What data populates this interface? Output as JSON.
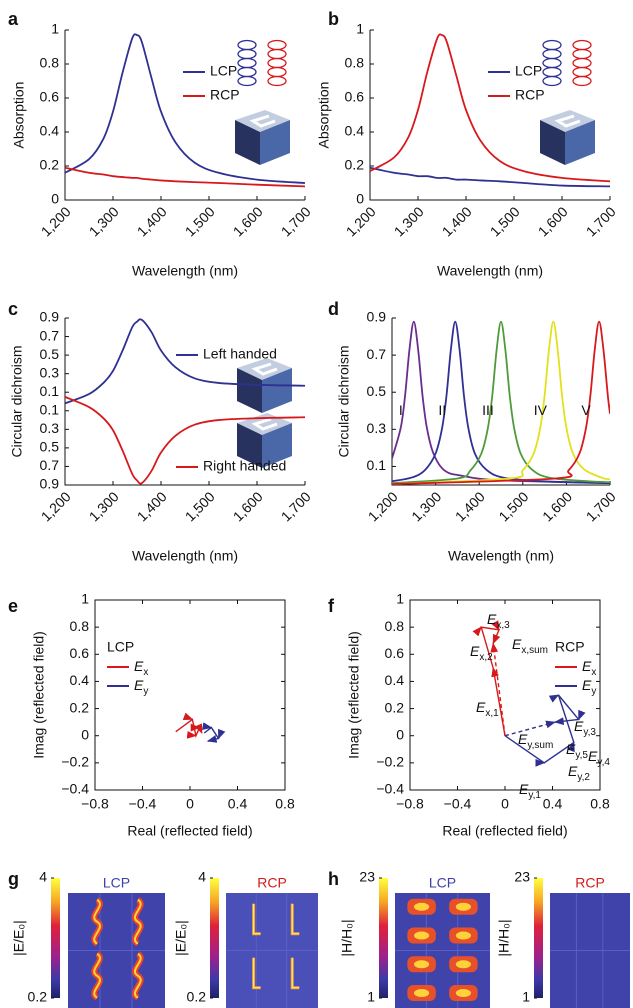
{
  "chart_data": [
    {
      "type": "line",
      "label": "a",
      "xlabel": "Wavelength (nm)",
      "ylabel": "Absorption",
      "x": [
        1200,
        1250,
        1280,
        1300,
        1320,
        1340,
        1350,
        1360,
        1380,
        1400,
        1430,
        1470,
        1520,
        1600,
        1700
      ],
      "xlim": [
        1200,
        1700
      ],
      "xticks": [
        {
          "value": 1200,
          "label": "1,200"
        },
        {
          "value": 1300,
          "label": "1,300"
        },
        {
          "value": 1400,
          "label": "1,400"
        },
        {
          "value": 1500,
          "label": "1,500"
        },
        {
          "value": 1600,
          "label": "1,600"
        },
        {
          "value": 1700,
          "label": "1,700"
        }
      ],
      "ylim": [
        0,
        1
      ],
      "yticks": [
        0,
        0.2,
        0.4,
        0.6,
        0.8,
        1
      ],
      "series": [
        {
          "name": "LCP",
          "color": "#2e3192",
          "values": [
            0.16,
            0.24,
            0.36,
            0.52,
            0.75,
            0.95,
            0.97,
            0.93,
            0.72,
            0.52,
            0.34,
            0.22,
            0.16,
            0.12,
            0.1
          ]
        },
        {
          "name": "RCP",
          "color": "#d7191c",
          "values": [
            0.19,
            0.16,
            0.15,
            0.14,
            0.135,
            0.13,
            0.13,
            0.125,
            0.12,
            0.115,
            0.11,
            0.105,
            0.1,
            0.09,
            0.08
          ]
        }
      ]
    },
    {
      "type": "line",
      "label": "b",
      "xlabel": "Wavelength (nm)",
      "ylabel": "Absorption",
      "x": [
        1200,
        1250,
        1280,
        1300,
        1320,
        1340,
        1350,
        1360,
        1380,
        1400,
        1430,
        1470,
        1520,
        1600,
        1700
      ],
      "xlim": [
        1200,
        1700
      ],
      "xticks": [
        {
          "value": 1200,
          "label": "1,200"
        },
        {
          "value": 1300,
          "label": "1,300"
        },
        {
          "value": 1400,
          "label": "1,400"
        },
        {
          "value": 1500,
          "label": "1,500"
        },
        {
          "value": 1600,
          "label": "1,600"
        },
        {
          "value": 1700,
          "label": "1,700"
        }
      ],
      "ylim": [
        0,
        1
      ],
      "yticks": [
        0,
        0.2,
        0.4,
        0.6,
        0.8,
        1
      ],
      "series": [
        {
          "name": "LCP",
          "color": "#2e3192",
          "values": [
            0.19,
            0.16,
            0.15,
            0.14,
            0.14,
            0.13,
            0.13,
            0.13,
            0.12,
            0.12,
            0.115,
            0.11,
            0.1,
            0.085,
            0.08
          ]
        },
        {
          "name": "RCP",
          "color": "#d7191c",
          "values": [
            0.17,
            0.25,
            0.37,
            0.53,
            0.76,
            0.95,
            0.97,
            0.93,
            0.73,
            0.53,
            0.35,
            0.23,
            0.17,
            0.13,
            0.11
          ]
        }
      ]
    },
    {
      "type": "line",
      "label": "c",
      "xlabel": "Wavelength (nm)",
      "ylabel": "Circular dichroism",
      "x": [
        1200,
        1250,
        1280,
        1300,
        1320,
        1340,
        1350,
        1360,
        1380,
        1400,
        1430,
        1470,
        1520,
        1600,
        1700
      ],
      "xlim": [
        1200,
        1700
      ],
      "xticks": [
        {
          "value": 1200,
          "label": "1,200"
        },
        {
          "value": 1300,
          "label": "1,300"
        },
        {
          "value": 1400,
          "label": "1,400"
        },
        {
          "value": 1500,
          "label": "1,500"
        },
        {
          "value": 1600,
          "label": "1,600"
        },
        {
          "value": 1700,
          "label": "1,700"
        }
      ],
      "ylim": [
        -0.9,
        0.9
      ],
      "yticks": [
        0.9,
        0.7,
        0.5,
        0.3,
        0.1,
        {
          "value": -0.1,
          "label": "0.1"
        },
        {
          "value": -0.3,
          "label": "0.3"
        },
        {
          "value": -0.5,
          "label": "0.5"
        },
        {
          "value": -0.7,
          "label": "0.7"
        },
        {
          "value": -0.9,
          "label": "0.9"
        }
      ],
      "series": [
        {
          "name": "Left handed",
          "color": "#2e3192",
          "values": [
            -0.02,
            0.08,
            0.2,
            0.33,
            0.55,
            0.8,
            0.86,
            0.88,
            0.75,
            0.55,
            0.37,
            0.25,
            0.2,
            0.18,
            0.17
          ]
        },
        {
          "name": "Right handed",
          "color": "#d7191c",
          "values": [
            0.05,
            -0.06,
            -0.18,
            -0.31,
            -0.53,
            -0.78,
            -0.85,
            -0.88,
            -0.75,
            -0.55,
            -0.37,
            -0.25,
            -0.2,
            -0.18,
            -0.17
          ]
        }
      ]
    },
    {
      "type": "line",
      "label": "d",
      "xlabel": "Wavelength (nm)",
      "ylabel": "Circular dichroism",
      "xlim": [
        1200,
        1700
      ],
      "xticks": [
        {
          "value": 1200,
          "label": "1,200"
        },
        {
          "value": 1300,
          "label": "1,300"
        },
        {
          "value": 1400,
          "label": "1,400"
        },
        {
          "value": 1500,
          "label": "1,500"
        },
        {
          "value": 1600,
          "label": "1,600"
        },
        {
          "value": 1700,
          "label": "1,700"
        }
      ],
      "ylim": [
        0,
        0.9
      ],
      "yticks": [
        0.1,
        0.3,
        0.5,
        0.7,
        0.9
      ],
      "series": [
        {
          "name": "I",
          "color": "#6a2c8e",
          "x": [
            1200,
            1220,
            1230,
            1240,
            1250,
            1260,
            1270,
            1280,
            1295,
            1320,
            1360,
            1450,
            1700
          ],
          "values": [
            0.143,
            0.308,
            0.482,
            0.729,
            0.88,
            0.729,
            0.482,
            0.308,
            0.17,
            0.079,
            0.05,
            0.025,
            0.01
          ]
        },
        {
          "name": "II",
          "color": "#2e3192",
          "x": [
            1200,
            1245,
            1275,
            1300,
            1315,
            1325,
            1335,
            1345,
            1355,
            1365,
            1375,
            1390,
            1415,
            1455,
            1545,
            1700
          ],
          "values": [
            0.02,
            0.04,
            0.079,
            0.17,
            0.308,
            0.482,
            0.729,
            0.88,
            0.729,
            0.482,
            0.308,
            0.17,
            0.085,
            0.04,
            0.02,
            0.01
          ]
        },
        {
          "name": "III",
          "color": "#4f9a3b",
          "x": [
            1200,
            1350,
            1380,
            1405,
            1420,
            1430,
            1440,
            1450,
            1460,
            1470,
            1480,
            1495,
            1520,
            1560,
            1650,
            1700
          ],
          "values": [
            0.01,
            0.035,
            0.079,
            0.17,
            0.308,
            0.482,
            0.729,
            0.88,
            0.729,
            0.482,
            0.308,
            0.17,
            0.085,
            0.04,
            0.02,
            0.015
          ]
        },
        {
          "name": "IV",
          "color": "#e3e01c",
          "x": [
            1200,
            1470,
            1500,
            1525,
            1540,
            1550,
            1560,
            1570,
            1580,
            1590,
            1600,
            1615,
            1640,
            1680,
            1700
          ],
          "values": [
            0.005,
            0.035,
            0.079,
            0.17,
            0.308,
            0.482,
            0.729,
            0.88,
            0.729,
            0.482,
            0.308,
            0.17,
            0.085,
            0.04,
            0.03
          ]
        },
        {
          "name": "V",
          "color": "#d7191c",
          "x": [
            1200,
            1575,
            1605,
            1630,
            1645,
            1655,
            1665,
            1675,
            1685,
            1695,
            1700
          ],
          "values": [
            0.005,
            0.035,
            0.079,
            0.17,
            0.308,
            0.482,
            0.729,
            0.88,
            0.729,
            0.482,
            0.384
          ]
        }
      ]
    },
    {
      "type": "vector",
      "label": "e",
      "xlabel": "Real (reflected field)",
      "ylabel": "Imag (reflected field)",
      "box": true,
      "xlim": [
        -0.8,
        0.8
      ],
      "xticks": [
        {
          "value": -0.8,
          "label": "−0.8"
        },
        {
          "value": -0.4,
          "label": "−0.4"
        },
        0,
        0.4,
        0.8
      ],
      "ylim": [
        -0.4,
        1
      ],
      "yticks": [
        {
          "value": -0.4,
          "label": "−0.4"
        },
        {
          "value": -0.2,
          "label": "−0.2"
        },
        0,
        0.2,
        0.4,
        0.6,
        0.8,
        1
      ],
      "legend_title": "LCP",
      "series": [
        {
          "name": "E",
          "name_sub": "x",
          "color": "#d7191c",
          "x": [
            -0.12,
            0.02,
            0.05,
            0.08,
            0.1
          ],
          "values": [
            0.03,
            0.12,
            0.0,
            0.06,
            0.02
          ]
        },
        {
          "name": "E",
          "name_sub": "y",
          "color": "#2e3192",
          "x": [
            0.12,
            0.18,
            0.24,
            0.15
          ],
          "values": [
            0.02,
            0.06,
            -0.02,
            -0.04
          ]
        }
      ]
    },
    {
      "type": "vector",
      "label": "f",
      "xlabel": "Real (reflected field)",
      "ylabel": "Imag (reflected field)",
      "box": true,
      "xlim": [
        -0.8,
        0.8
      ],
      "xticks": [
        {
          "value": -0.8,
          "label": "−0.8"
        },
        {
          "value": -0.4,
          "label": "−0.4"
        },
        0,
        0.4,
        0.8
      ],
      "ylim": [
        -0.4,
        1
      ],
      "yticks": [
        {
          "value": -0.4,
          "label": "−0.4"
        },
        {
          "value": -0.2,
          "label": "−0.2"
        },
        0,
        0.2,
        0.4,
        0.6,
        0.8,
        1
      ],
      "legend_title": "RCP",
      "series": [
        {
          "name": "E",
          "name_sub": "x",
          "color": "#d7191c",
          "x": [
            0,
            -0.1,
            -0.2,
            -0.05,
            -0.1
          ],
          "values": [
            0,
            0.5,
            0.8,
            0.78,
            0.68
          ]
        },
        {
          "name": "E",
          "name_sub": "y",
          "color": "#2e3192",
          "x": [
            0,
            0.33,
            0.58,
            0.45,
            0.62,
            0.42
          ],
          "values": [
            0,
            -0.2,
            -0.05,
            0.3,
            0.12,
            0.1
          ]
        },
        {
          "color": "#d7191c",
          "dashed": true,
          "x": [
            0,
            -0.1
          ],
          "values": [
            0,
            0.68
          ]
        },
        {
          "color": "#2e3192",
          "dashed": true,
          "x": [
            0,
            0.42
          ],
          "values": [
            0,
            0.1
          ]
        }
      ],
      "annotations": [
        {
          "text": "E",
          "sub": "x,3"
        },
        {
          "text": "E",
          "sub": "x,sum"
        },
        {
          "text": "E",
          "sub": "x,2"
        },
        {
          "text": "E",
          "sub": "x,1"
        },
        {
          "text": "E",
          "sub": "y,sum"
        },
        {
          "text": "E",
          "sub": "y,3"
        },
        {
          "text": "E",
          "sub": "y,5"
        },
        {
          "text": "E",
          "sub": "y,4"
        },
        {
          "text": "E",
          "sub": "y,2"
        },
        {
          "text": "E",
          "sub": "y,1"
        }
      ]
    },
    {
      "type": "heatmap",
      "label": "g",
      "colorbar_label": "|E/E₀|",
      "clim": [
        0.2,
        4
      ],
      "cticks": [
        0.2,
        4
      ],
      "panels": [
        {
          "title": "LCP",
          "title_color": "#3b3fb0"
        },
        {
          "title": "RCP",
          "title_color": "#d7191c"
        }
      ]
    },
    {
      "type": "heatmap",
      "label": "h",
      "colorbar_label": "|H/H₀|",
      "clim": [
        1,
        23
      ],
      "cticks": [
        1,
        23
      ],
      "panels": [
        {
          "title": "LCP",
          "title_color": "#3b3fb0"
        },
        {
          "title": "RCP",
          "title_color": "#d7191c"
        }
      ]
    }
  ]
}
